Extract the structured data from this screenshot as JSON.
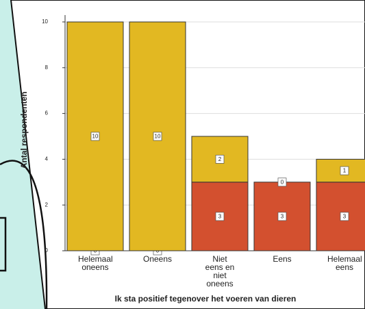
{
  "chart_data": {
    "type": "stacked-bar",
    "x_label": "Ik sta positief tegenover het voeren van dieren",
    "y_label": "Antal respondenten",
    "categories": [
      "Helemaal oneens",
      "Oneens",
      "Niet eens en niet oneens",
      "Eens",
      "Helemaal eens"
    ],
    "series": [
      {
        "color": "#d3502f",
        "values": [
          0,
          0,
          3,
          3,
          3
        ]
      },
      {
        "color": "#e2b822",
        "values": [
          10,
          10,
          2,
          0,
          1
        ]
      }
    ],
    "ylim": [
      0,
      10
    ],
    "yticks": [
      0,
      2,
      4,
      6,
      8,
      10
    ],
    "grid": true
  }
}
